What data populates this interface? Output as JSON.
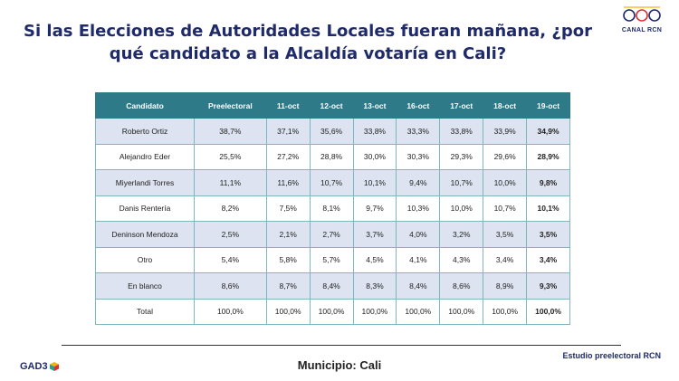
{
  "title": "Si las Elecciones de Autoridades Locales fueran mañana, ¿por qué candidato a la Alcaldía votaría en Cali?",
  "logo": {
    "icon": "rcn-logo",
    "text": "CANAL RCN"
  },
  "table": {
    "headers": [
      "Candidato",
      "Preelectoral",
      "11-oct",
      "12-oct",
      "13-oct",
      "16-oct",
      "17-oct",
      "18-oct",
      "19-oct"
    ],
    "rows": [
      [
        "Roberto Ortiz",
        "38,7%",
        "37,1%",
        "35,6%",
        "33,8%",
        "33,3%",
        "33,8%",
        "33,9%",
        "34,9%"
      ],
      [
        "Alejandro Eder",
        "25,5%",
        "27,2%",
        "28,8%",
        "30,0%",
        "30,3%",
        "29,3%",
        "29,6%",
        "28,9%"
      ],
      [
        "Miyerlandi Torres",
        "11,1%",
        "11,6%",
        "10,7%",
        "10,1%",
        "9,4%",
        "10,7%",
        "10,0%",
        "9,8%"
      ],
      [
        "Danis Rentería",
        "8,2%",
        "7,5%",
        "8,1%",
        "9,7%",
        "10,3%",
        "10,0%",
        "10,7%",
        "10,1%"
      ],
      [
        "Deninson Mendoza",
        "2,5%",
        "2,1%",
        "2,7%",
        "3,7%",
        "4,0%",
        "3,2%",
        "3,5%",
        "3,5%"
      ],
      [
        "Otro",
        "5,4%",
        "5,8%",
        "5,7%",
        "4,5%",
        "4,1%",
        "4,3%",
        "3,4%",
        "3,4%"
      ],
      [
        "En blanco",
        "8,6%",
        "8,7%",
        "8,4%",
        "8,3%",
        "8,4%",
        "8,6%",
        "8,9%",
        "9,3%"
      ],
      [
        "Total",
        "100,0%",
        "100,0%",
        "100,0%",
        "100,0%",
        "100,0%",
        "100,0%",
        "100,0%",
        "100,0%"
      ]
    ]
  },
  "footer": {
    "municipio": "Municipio: Cali",
    "estudio": "Estudio preelectoral RCN",
    "gad_logo": "GAD3",
    "gad_icon": "cube-icon"
  },
  "colors": {
    "header_bg": "#2e7a88",
    "title": "#1f2a6b",
    "shaded_row": "#dde3f0"
  }
}
